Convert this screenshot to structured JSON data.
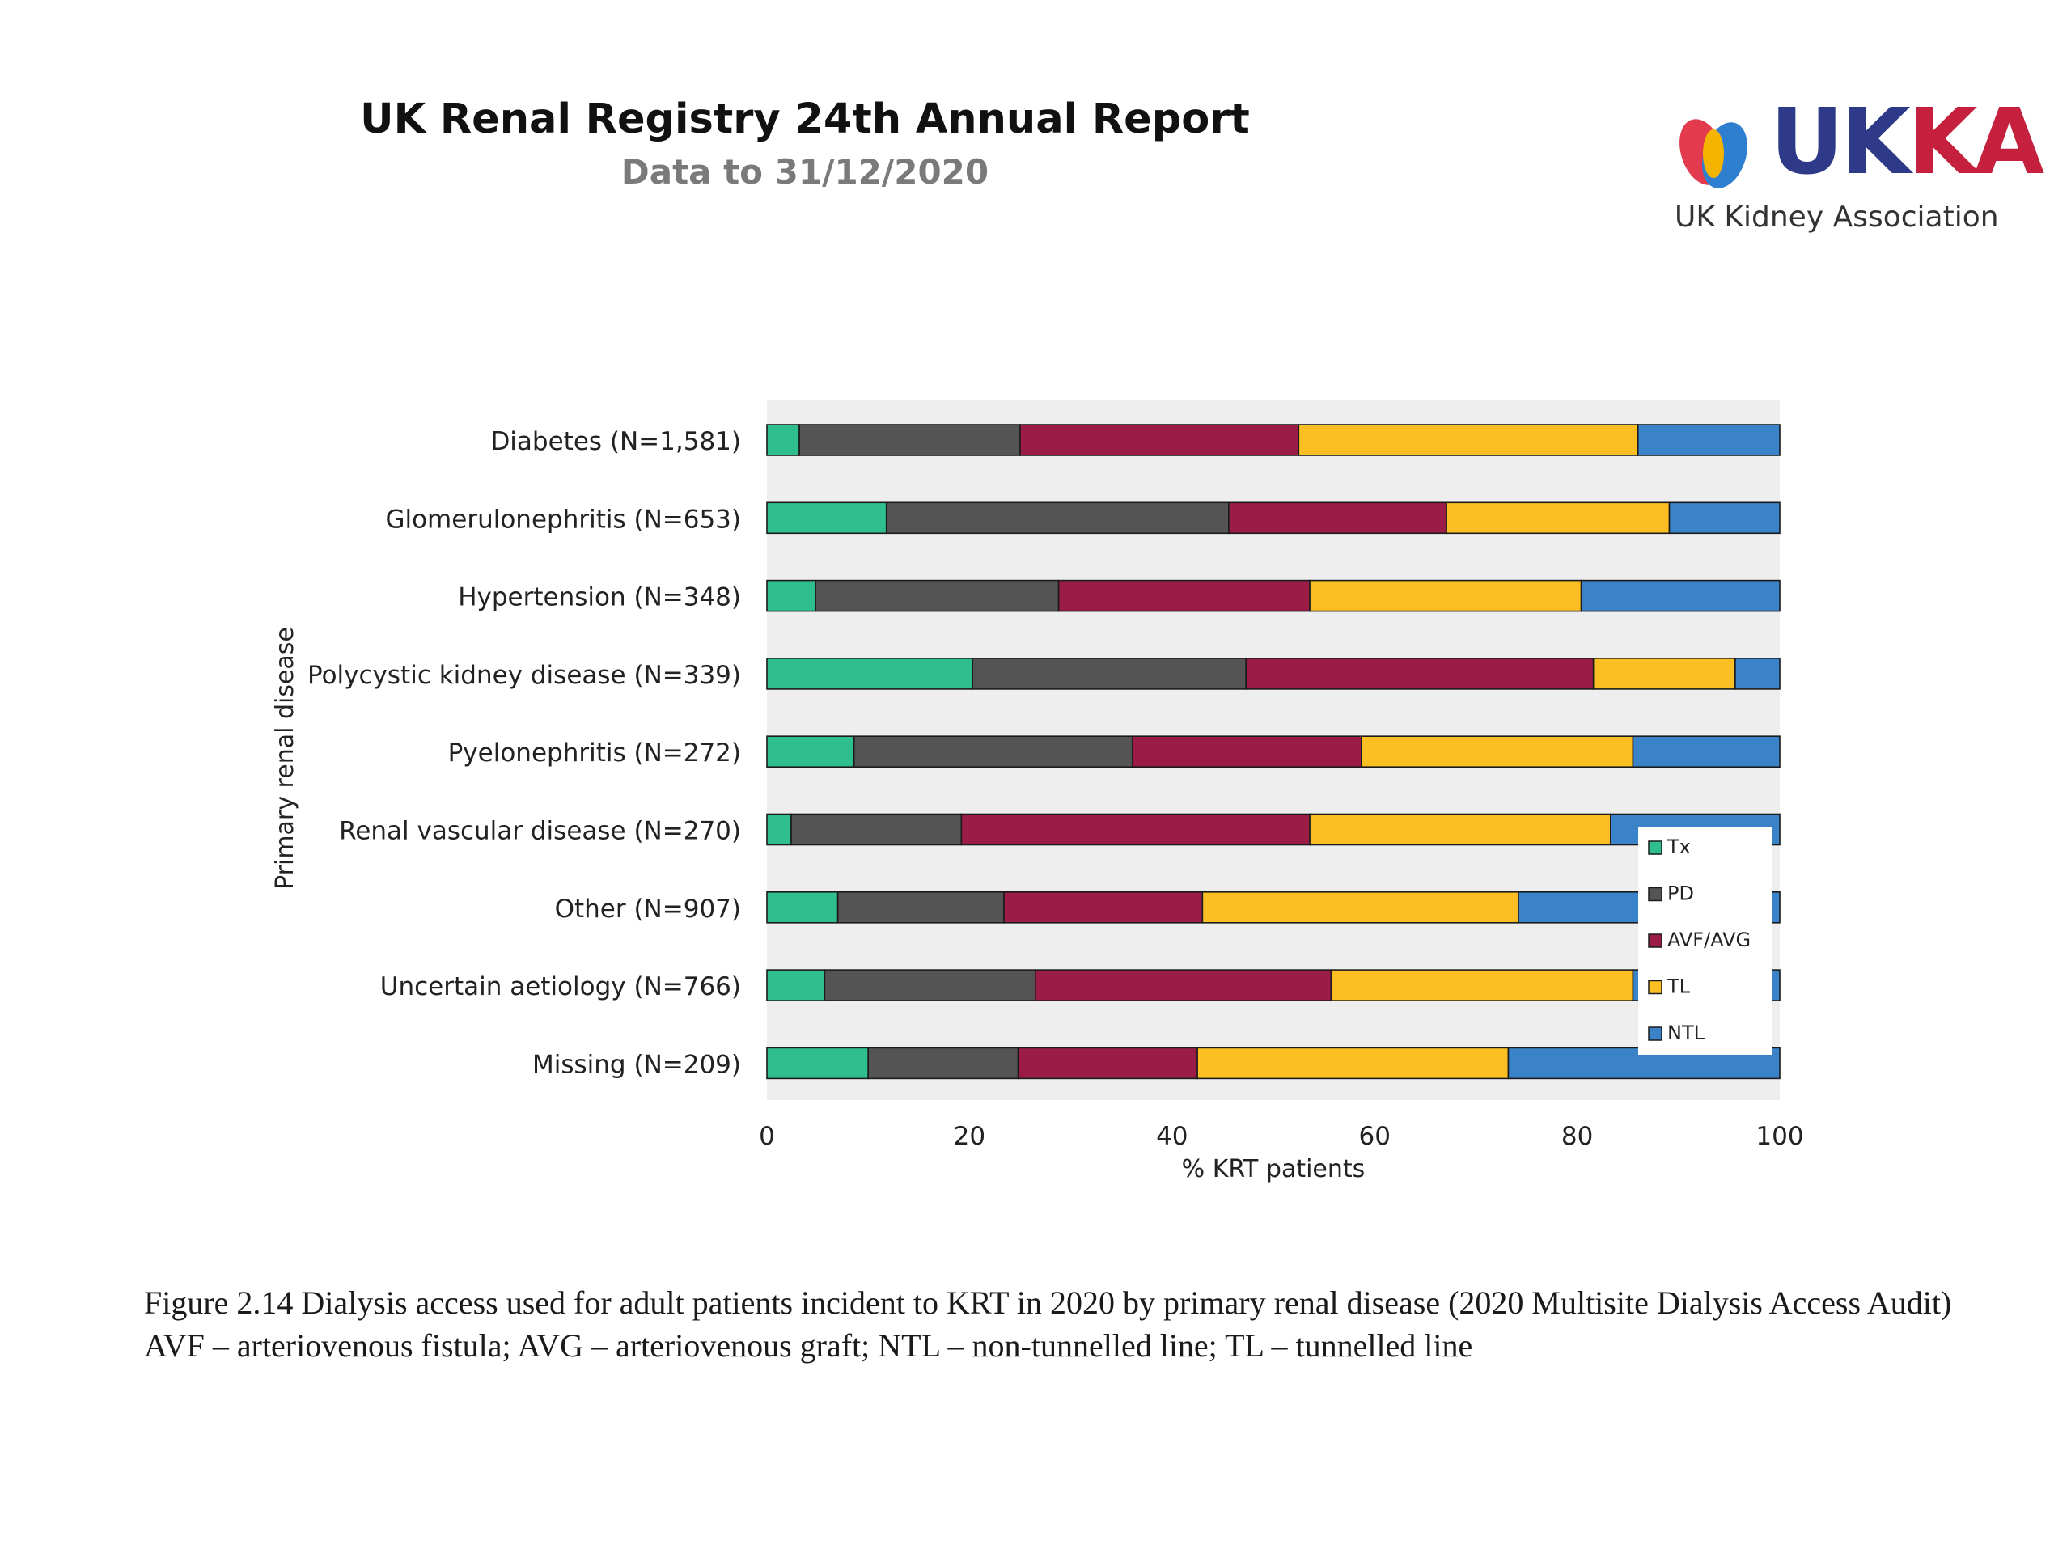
{
  "header": {
    "title": "UK Renal Registry 24th Annual Report",
    "subtitle": "Data to 31/12/2020"
  },
  "logo": {
    "mark_colors": [
      "#e23b4e",
      "#2f7fd0",
      "#f5b400"
    ],
    "word_uk": "UK",
    "word_ka": "KA",
    "tagline": "UK Kidney Association"
  },
  "chart_data": {
    "type": "bar",
    "orientation": "horizontal",
    "stacked": true,
    "title": "",
    "xlabel": "% KRT patients",
    "ylabel": "Primary renal disease",
    "xlim": [
      0,
      100
    ],
    "xticks": [
      "0",
      "20",
      "40",
      "60",
      "80",
      "100"
    ],
    "grid": false,
    "legend_position": "bottom-right, inside",
    "categories": [
      "Diabetes (N=1,581)",
      "Glomerulonephritis (N=653)",
      "Hypertension (N=348)",
      "Polycystic kidney disease (N=339)",
      "Pyelonephritis (N=272)",
      "Renal vascular disease (N=270)",
      "Other (N=907)",
      "Uncertain aetiology (N=766)",
      "Missing (N=209)"
    ],
    "series": [
      {
        "name": "Tx",
        "color": "#2fbf8f",
        "values": [
          3.2,
          11.8,
          4.8,
          20.3,
          8.6,
          2.4,
          7.0,
          5.7,
          10.0
        ]
      },
      {
        "name": "PD",
        "color": "#545454",
        "values": [
          21.8,
          33.8,
          24.0,
          27.0,
          27.5,
          16.8,
          16.4,
          20.8,
          14.8
        ]
      },
      {
        "name": "AVF/AVG",
        "color": "#9b1c47",
        "values": [
          27.5,
          21.5,
          24.8,
          34.3,
          22.6,
          34.4,
          19.6,
          29.2,
          17.7
        ]
      },
      {
        "name": "TL",
        "color": "#fbbf24",
        "values": [
          33.5,
          22.0,
          26.8,
          14.0,
          26.8,
          29.7,
          31.2,
          29.8,
          30.7
        ]
      },
      {
        "name": "NTL",
        "color": "#3a83c8",
        "values": [
          14.0,
          10.9,
          19.6,
          4.4,
          14.5,
          16.7,
          25.8,
          14.5,
          26.8
        ]
      }
    ]
  },
  "caption": {
    "line1": "Figure 2.14 Dialysis access used for adult patients incident to KRT in 2020 by primary renal disease (2020 Multisite Dialysis Access Audit)",
    "line2": "AVF – arteriovenous fistula; AVG – arteriovenous graft; NTL – non-tunnelled line; TL – tunnelled line"
  }
}
